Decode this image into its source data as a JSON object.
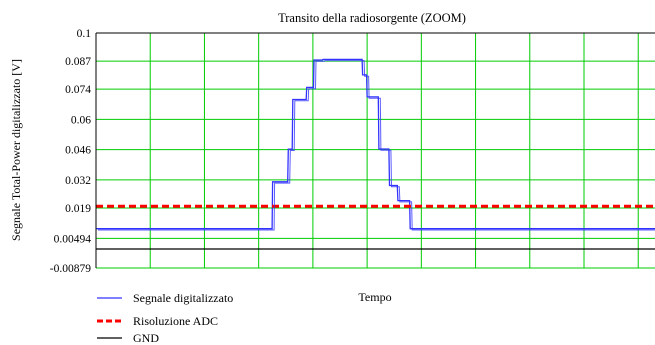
{
  "chart_data": {
    "type": "line",
    "title": "Transito della radiosorgente (ZOOM)",
    "xlabel": "Tempo",
    "ylabel": "Segnale Total-Power digitalizzato [V]",
    "ylim": [
      -0.00879,
      0.1
    ],
    "y_ticks": [
      0.1,
      0.087,
      0.074,
      0.06,
      0.046,
      0.032,
      0.019,
      0.00494,
      -0.00879
    ],
    "y_tick_labels": [
      "0.1",
      "0.087",
      "0.074",
      "0.06",
      "0.046",
      "0.032",
      "0.019",
      "0.00494",
      "-0.00879"
    ],
    "xlim": [
      0,
      100
    ],
    "x_grid": [
      9.7,
      19.4,
      29.1,
      38.8,
      48.5,
      58.2,
      67.9,
      77.6,
      87.3,
      97
    ],
    "grid": true,
    "grid_color": "#00cc00",
    "legend_position": "bottom-left",
    "series": [
      {
        "name": "Segnale digitalizzato",
        "color": "#3333ff",
        "style": "solid",
        "x": [
          0,
          31.5,
          31.6,
          34.3,
          34.4,
          35.1,
          35.2,
          37.6,
          37.7,
          38.9,
          39.0,
          40.5,
          40.6,
          47.6,
          47.7,
          48.4,
          48.5,
          50.5,
          50.6,
          52.4,
          52.5,
          53.9,
          54.0,
          56.1,
          56.2,
          100
        ],
        "y": [
          0.0094,
          0.0094,
          0.0311,
          0.0311,
          0.0462,
          0.0462,
          0.0692,
          0.0692,
          0.0748,
          0.0748,
          0.0875,
          0.0875,
          0.0878,
          0.0878,
          0.0806,
          0.0806,
          0.0704,
          0.0704,
          0.0463,
          0.0463,
          0.0294,
          0.0294,
          0.0224,
          0.0224,
          0.0094,
          0.0094
        ]
      },
      {
        "name": "Risoluzione ADC",
        "color": "#ff0000",
        "style": "dashed",
        "x": [
          0,
          100
        ],
        "y": [
          0.0198,
          0.0198
        ]
      },
      {
        "name": "GND",
        "color": "#000000",
        "style": "solid",
        "x": [
          0,
          100
        ],
        "y": [
          0,
          0
        ]
      }
    ]
  }
}
